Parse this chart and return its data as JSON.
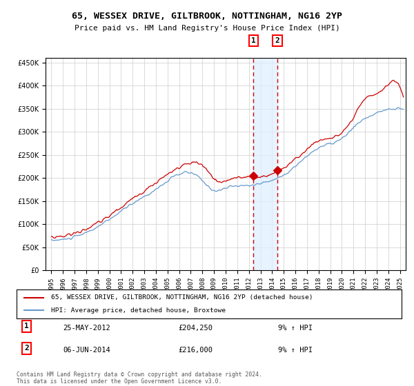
{
  "title": "65, WESSEX DRIVE, GILTBROOK, NOTTINGHAM, NG16 2YP",
  "subtitle": "Price paid vs. HM Land Registry's House Price Index (HPI)",
  "legend_line1": "65, WESSEX DRIVE, GILTBROOK, NOTTINGHAM, NG16 2YP (detached house)",
  "legend_line2": "HPI: Average price, detached house, Broxtowe",
  "transaction1_date": "25-MAY-2012",
  "transaction1_price": "£204,250",
  "transaction1_hpi": "9% ↑ HPI",
  "transaction2_date": "06-JUN-2014",
  "transaction2_price": "£216,000",
  "transaction2_hpi": "9% ↑ HPI",
  "footnote": "Contains HM Land Registry data © Crown copyright and database right 2024.\nThis data is licensed under the Open Government Licence v3.0.",
  "red_color": "#cc0000",
  "blue_color": "#6699cc",
  "background_color": "#ffffff",
  "grid_color": "#cccccc",
  "transaction1_x": 2012.4,
  "transaction2_x": 2014.45,
  "ylim_min": 0,
  "ylim_max": 460000,
  "xlim_min": 1994.5,
  "xlim_max": 2025.5
}
